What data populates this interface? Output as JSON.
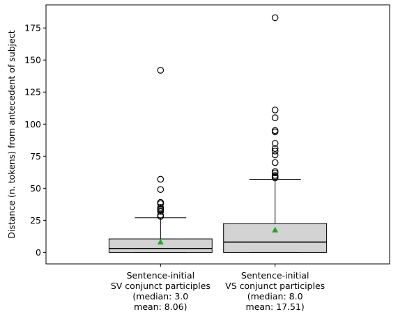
{
  "chart_data": {
    "type": "box",
    "title": "",
    "xlabel": "",
    "ylabel": "Distance (n. tokens) from antecedent of subject",
    "ylim": [
      -9,
      193
    ],
    "yticks": [
      0,
      25,
      50,
      75,
      100,
      125,
      150,
      175
    ],
    "grid": false,
    "colors": {
      "box_fill": "#d3d3d3",
      "median": "#000000",
      "mean_marker": "#2ca02c"
    },
    "boxes": [
      {
        "label_lines": [
          "Sentence-initial",
          "SV conjunct participles",
          "(median: 3.0",
          "mean: 8.06)"
        ],
        "whisker_low": 0,
        "q1": 0,
        "median": 3.0,
        "q3": 10.5,
        "whisker_high": 27,
        "mean": 8.06,
        "outliers": [
          28,
          29,
          32,
          33,
          34,
          35,
          38,
          39,
          49,
          57,
          142
        ]
      },
      {
        "label_lines": [
          "Sentence-initial",
          "VS conjunct participles",
          "(median: 8.0",
          "mean: 17.51)"
        ],
        "whisker_low": 0,
        "q1": 0,
        "median": 8.0,
        "q3": 22.5,
        "whisker_high": 57,
        "mean": 17.51,
        "outliers": [
          58,
          59,
          60,
          62,
          63,
          70,
          76,
          79,
          81,
          85,
          94,
          95,
          105,
          111,
          183
        ]
      }
    ]
  }
}
